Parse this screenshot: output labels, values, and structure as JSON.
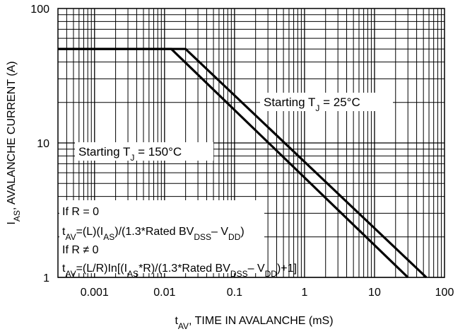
{
  "chart_data": {
    "type": "line",
    "x_scale": "log",
    "y_scale": "log",
    "xlim": [
      0.0003,
      100
    ],
    "ylim": [
      1,
      100
    ],
    "grid": true,
    "xlabel": {
      "main": "t",
      "sub": "AV",
      "rest": ", TIME IN AVALANCHE (mS)"
    },
    "ylabel": {
      "main": "I",
      "sub": "AS",
      "rest": ", AVALANCHE CURRENT (A)"
    },
    "x_ticks": [
      {
        "value": 0.001,
        "label": "0.001"
      },
      {
        "value": 0.01,
        "label": "0.01"
      },
      {
        "value": 0.1,
        "label": "0.1"
      },
      {
        "value": 1,
        "label": "1"
      },
      {
        "value": 10,
        "label": "10"
      },
      {
        "value": 100,
        "label": "100"
      }
    ],
    "y_ticks": [
      {
        "value": 1,
        "label": "1"
      },
      {
        "value": 10,
        "label": "10"
      },
      {
        "value": 100,
        "label": "100"
      }
    ],
    "series": [
      {
        "label": {
          "prefix": "Starting T",
          "sub": "J",
          "suffix": " = 25°C"
        },
        "x": [
          0.0003,
          0.02,
          55
        ],
        "y": [
          50,
          50,
          1
        ]
      },
      {
        "label": {
          "prefix": "Starting T",
          "sub": "J",
          "suffix": " = 150°C"
        },
        "x": [
          0.0003,
          0.0125,
          30
        ],
        "y": [
          50,
          50,
          1
        ]
      }
    ],
    "annotations": [
      [
        {
          "t": "If R = 0"
        }
      ],
      [
        {
          "t": "t"
        },
        {
          "t": "AV",
          "sub": true
        },
        {
          "t": "=(L)(I"
        },
        {
          "t": "AS",
          "sub": true
        },
        {
          "t": ")/(1.3*Rated BV"
        },
        {
          "t": "DSS",
          "sub": true
        },
        {
          "t": "– V"
        },
        {
          "t": "DD",
          "sub": true
        },
        {
          "t": ")"
        }
      ],
      [
        {
          "t": "If R ≠ 0"
        }
      ],
      [
        {
          "t": "t"
        },
        {
          "t": "AV",
          "sub": true
        },
        {
          "t": "=(L/R)In[(I"
        },
        {
          "t": "AS",
          "sub": true
        },
        {
          "t": "*R)/(1.3*Rated BV"
        },
        {
          "t": "DSS",
          "sub": true
        },
        {
          "t": "– V"
        },
        {
          "t": "DD",
          "sub": true
        },
        {
          "t": ")+1]"
        }
      ]
    ]
  }
}
